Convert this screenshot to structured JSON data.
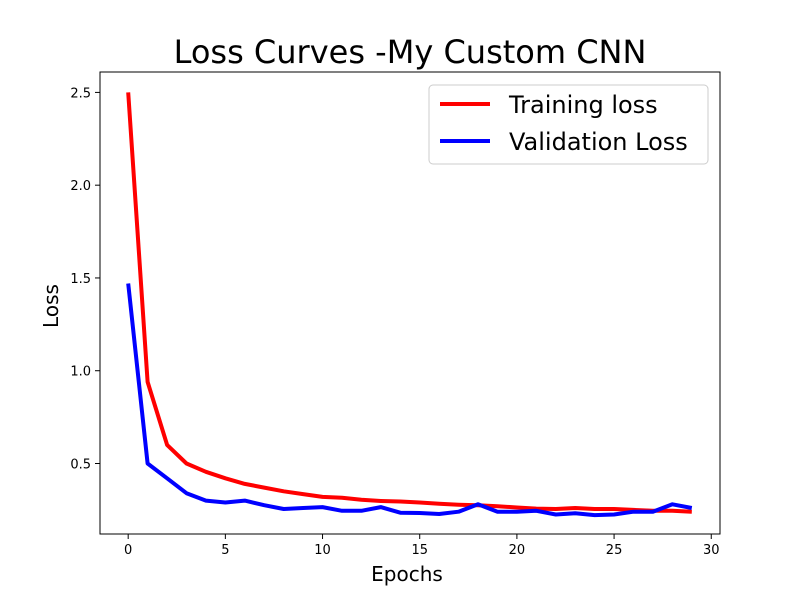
{
  "chart_data": {
    "type": "line",
    "title": "Loss Curves -My Custom CNN",
    "xlabel": "Epochs",
    "ylabel": "Loss",
    "xlim": [
      -1.45,
      30.45
    ],
    "ylim": [
      0.12,
      2.61
    ],
    "xticks": [
      0,
      5,
      10,
      15,
      20,
      25,
      30
    ],
    "yticks": [
      0.5,
      1.0,
      1.5,
      2.0,
      2.5
    ],
    "xtick_labels": [
      "0",
      "5",
      "10",
      "15",
      "20",
      "25",
      "30"
    ],
    "ytick_labels": [
      "0.5",
      "1.0",
      "1.5",
      "2.0",
      "2.5"
    ],
    "grid": false,
    "legend_position": "top-right",
    "x": [
      0,
      1,
      2,
      3,
      4,
      5,
      6,
      7,
      8,
      9,
      10,
      11,
      12,
      13,
      14,
      15,
      16,
      17,
      18,
      19,
      20,
      21,
      22,
      23,
      24,
      25,
      26,
      27,
      28,
      29
    ],
    "series": [
      {
        "name": "Training loss",
        "color": "#ff0000",
        "values": [
          2.5,
          0.94,
          0.6,
          0.5,
          0.455,
          0.42,
          0.39,
          0.37,
          0.35,
          0.335,
          0.32,
          0.315,
          0.305,
          0.298,
          0.295,
          0.29,
          0.283,
          0.278,
          0.275,
          0.27,
          0.263,
          0.257,
          0.255,
          0.26,
          0.255,
          0.255,
          0.25,
          0.245,
          0.245,
          0.24
        ]
      },
      {
        "name": "Validation Loss",
        "color": "#0000ff",
        "values": [
          1.47,
          0.5,
          0.42,
          0.34,
          0.3,
          0.29,
          0.3,
          0.275,
          0.255,
          0.26,
          0.265,
          0.245,
          0.245,
          0.265,
          0.235,
          0.233,
          0.228,
          0.24,
          0.28,
          0.24,
          0.24,
          0.245,
          0.225,
          0.232,
          0.222,
          0.225,
          0.24,
          0.24,
          0.28,
          0.26
        ]
      }
    ]
  }
}
